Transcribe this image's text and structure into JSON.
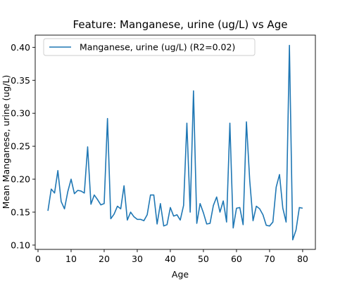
{
  "chart_data": {
    "type": "line",
    "title": "Feature: Manganese, urine (ug/L) vs Age",
    "xlabel": "Age",
    "ylabel": "Mean Manganese, urine (ug/L)",
    "xlim": [
      -0.85,
      83.85
    ],
    "ylim": [
      0.0935,
      0.4185
    ],
    "xticks": [
      0,
      10,
      20,
      30,
      40,
      50,
      60,
      70,
      80
    ],
    "yticks": [
      0.1,
      0.15,
      0.2,
      0.25,
      0.3,
      0.35,
      0.4
    ],
    "ytick_labels": [
      "0.10",
      "0.15",
      "0.20",
      "0.25",
      "0.30",
      "0.35",
      "0.40"
    ],
    "grid": false,
    "legend_position": "upper-left",
    "line_color": "#1f77b4",
    "series": [
      {
        "name": "Manganese, urine (ug/L) (R2=0.02)",
        "x": [
          3,
          4,
          5,
          6,
          7,
          8,
          9,
          10,
          11,
          12,
          13,
          14,
          15,
          16,
          17,
          18,
          19,
          20,
          21,
          22,
          23,
          24,
          25,
          26,
          27,
          28,
          29,
          30,
          31,
          32,
          33,
          34,
          35,
          36,
          37,
          38,
          39,
          40,
          41,
          42,
          43,
          44,
          45,
          46,
          47,
          48,
          49,
          50,
          51,
          52,
          53,
          54,
          55,
          56,
          57,
          58,
          59,
          60,
          61,
          62,
          63,
          64,
          65,
          66,
          67,
          68,
          69,
          70,
          71,
          72,
          73,
          74,
          75,
          76,
          77,
          78,
          79,
          80
        ],
        "y": [
          0.152,
          0.185,
          0.179,
          0.213,
          0.166,
          0.155,
          0.181,
          0.2,
          0.178,
          0.183,
          0.182,
          0.179,
          0.249,
          0.162,
          0.176,
          0.169,
          0.161,
          0.163,
          0.292,
          0.14,
          0.147,
          0.159,
          0.155,
          0.19,
          0.138,
          0.15,
          0.143,
          0.139,
          0.139,
          0.137,
          0.146,
          0.176,
          0.176,
          0.132,
          0.163,
          0.129,
          0.131,
          0.157,
          0.144,
          0.146,
          0.138,
          0.16,
          0.285,
          0.15,
          0.334,
          0.133,
          0.163,
          0.149,
          0.132,
          0.133,
          0.16,
          0.173,
          0.15,
          0.167,
          0.135,
          0.285,
          0.126,
          0.156,
          0.157,
          0.131,
          0.287,
          0.198,
          0.137,
          0.159,
          0.155,
          0.146,
          0.13,
          0.129,
          0.135,
          0.188,
          0.207,
          0.156,
          0.135,
          0.403,
          0.108,
          0.123,
          0.157,
          0.156
        ]
      }
    ]
  }
}
